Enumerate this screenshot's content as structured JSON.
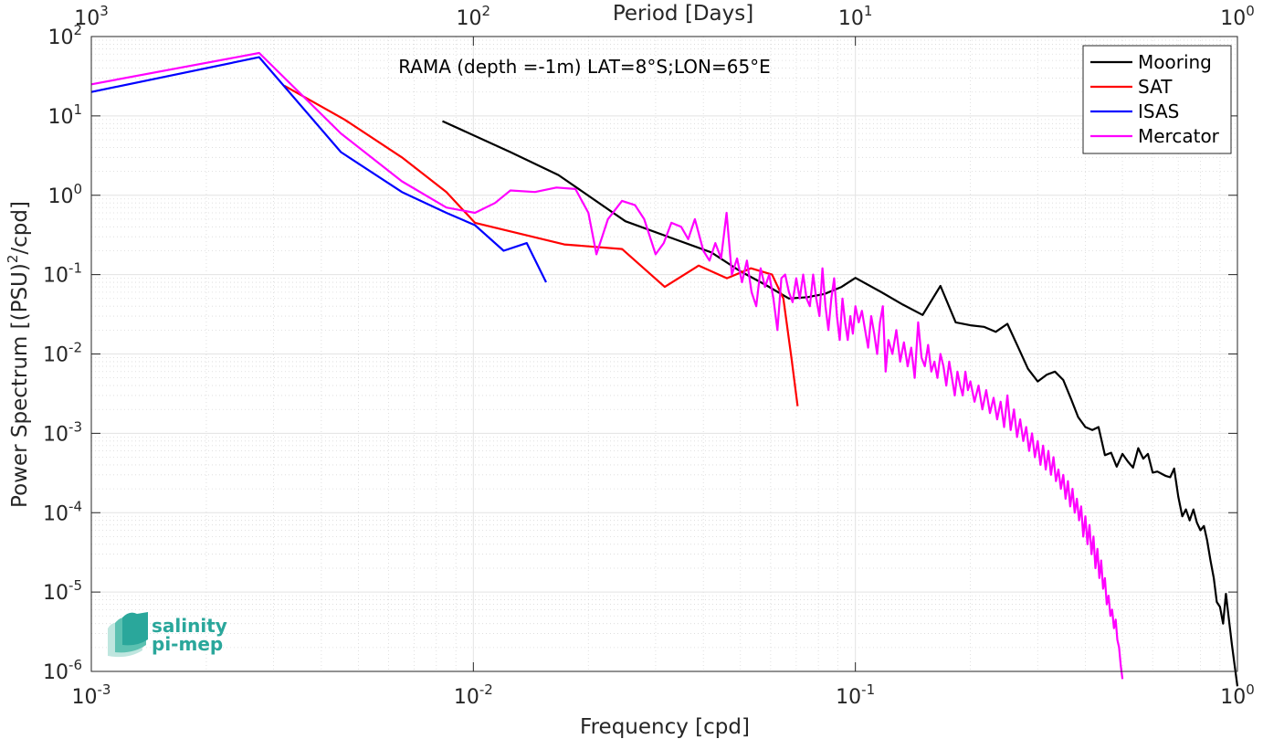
{
  "chart_data": {
    "type": "line",
    "title": "RAMA (depth =-1m) LAT=8°S;LON=65°E",
    "xlabel": "Frequency [cpd]",
    "ylabel_main": "Power Spectrum [(PSU)",
    "ylabel_sup": "2",
    "ylabel_tail": "/cpd]",
    "top_xlabel": "Period [Days]",
    "xscale": "log",
    "yscale": "log",
    "xlim": [
      0.001,
      1
    ],
    "ylim": [
      1e-06,
      100
    ],
    "grid": true,
    "legend_position": "top-right",
    "x_ticks": [
      {
        "base": "10",
        "exp": "-3"
      },
      {
        "base": "10",
        "exp": "-2"
      },
      {
        "base": "10",
        "exp": "-1"
      },
      {
        "base": "10",
        "exp": "0"
      }
    ],
    "top_ticks": [
      {
        "base": "10",
        "exp": "3"
      },
      {
        "base": "10",
        "exp": "2"
      },
      {
        "base": "10",
        "exp": "1"
      },
      {
        "base": "10",
        "exp": "0"
      }
    ],
    "y_ticks": [
      {
        "base": "10",
        "exp": "-6"
      },
      {
        "base": "10",
        "exp": "-5"
      },
      {
        "base": "10",
        "exp": "-4"
      },
      {
        "base": "10",
        "exp": "-3"
      },
      {
        "base": "10",
        "exp": "-2"
      },
      {
        "base": "10",
        "exp": "-1"
      },
      {
        "base": "10",
        "exp": "0"
      },
      {
        "base": "10",
        "exp": "1"
      },
      {
        "base": "10",
        "exp": "2"
      }
    ],
    "series": [
      {
        "name": "Mooring",
        "color": "#000000",
        "points": [
          [
            0.0083,
            8.6
          ],
          [
            0.0125,
            3.5
          ],
          [
            0.0167,
            1.8
          ],
          [
            0.025,
            0.47
          ],
          [
            0.033,
            0.29
          ],
          [
            0.042,
            0.19
          ],
          [
            0.05,
            0.11
          ],
          [
            0.058,
            0.075
          ],
          [
            0.067,
            0.05
          ],
          [
            0.075,
            0.052
          ],
          [
            0.083,
            0.057
          ],
          [
            0.092,
            0.07
          ],
          [
            0.1,
            0.091
          ],
          [
            0.117,
            0.06
          ],
          [
            0.133,
            0.042
          ],
          [
            0.15,
            0.031
          ],
          [
            0.167,
            0.072
          ],
          [
            0.183,
            0.025
          ],
          [
            0.2,
            0.023
          ],
          [
            0.217,
            0.022
          ],
          [
            0.233,
            0.019
          ],
          [
            0.25,
            0.024
          ],
          [
            0.267,
            0.012
          ],
          [
            0.283,
            0.0065
          ],
          [
            0.3,
            0.0045
          ],
          [
            0.317,
            0.0055
          ],
          [
            0.333,
            0.006
          ],
          [
            0.35,
            0.0047
          ],
          [
            0.367,
            0.0027
          ],
          [
            0.383,
            0.0016
          ],
          [
            0.4,
            0.0012
          ],
          [
            0.417,
            0.0011
          ],
          [
            0.433,
            0.0012
          ],
          [
            0.45,
            0.00053
          ],
          [
            0.467,
            0.00057
          ],
          [
            0.483,
            0.00038
          ],
          [
            0.5,
            0.00055
          ],
          [
            0.517,
            0.00044
          ],
          [
            0.533,
            0.00037
          ],
          [
            0.55,
            0.00065
          ],
          [
            0.567,
            0.00048
          ],
          [
            0.583,
            0.00055
          ],
          [
            0.6,
            0.00032
          ],
          [
            0.617,
            0.00033
          ],
          [
            0.633,
            0.00031
          ],
          [
            0.65,
            0.00029
          ],
          [
            0.667,
            0.00028
          ],
          [
            0.683,
            0.00036
          ],
          [
            0.7,
            0.00016
          ],
          [
            0.717,
            9e-05
          ],
          [
            0.733,
            0.00011
          ],
          [
            0.75,
            8e-05
          ],
          [
            0.767,
            0.00011
          ],
          [
            0.783,
            7.5e-05
          ],
          [
            0.8,
            6e-05
          ],
          [
            0.817,
            6.8e-05
          ],
          [
            0.833,
            4.5e-05
          ],
          [
            0.85,
            2.5e-05
          ],
          [
            0.867,
            1.5e-05
          ],
          [
            0.883,
            7.5e-06
          ],
          [
            0.9,
            6.5e-06
          ],
          [
            0.917,
            4e-06
          ],
          [
            0.933,
            9.5e-06
          ],
          [
            0.95,
            4.5e-06
          ],
          [
            0.967,
            2.2e-06
          ],
          [
            0.983,
            1.2e-06
          ],
          [
            1.0,
            6.5e-07
          ]
        ]
      },
      {
        "name": "SAT",
        "color": "#ff0000",
        "points": [
          [
            0.0032,
            24
          ],
          [
            0.0046,
            9
          ],
          [
            0.0065,
            3
          ],
          [
            0.0085,
            1.1
          ],
          [
            0.0101,
            0.45
          ],
          [
            0.0173,
            0.24
          ],
          [
            0.0245,
            0.21
          ],
          [
            0.0317,
            0.07
          ],
          [
            0.0389,
            0.13
          ],
          [
            0.0461,
            0.09
          ],
          [
            0.0533,
            0.12
          ],
          [
            0.0605,
            0.1
          ],
          [
            0.0648,
            0.05
          ],
          [
            0.068,
            0.009
          ],
          [
            0.0706,
            0.0022
          ]
        ]
      },
      {
        "name": "ISAS",
        "color": "#0000ff",
        "points": [
          [
            0.001,
            20
          ],
          [
            0.00275,
            55
          ],
          [
            0.0045,
            3.5
          ],
          [
            0.0065,
            1.1
          ],
          [
            0.0085,
            0.6
          ],
          [
            0.0101,
            0.42
          ],
          [
            0.012,
            0.2
          ],
          [
            0.0138,
            0.25
          ],
          [
            0.0155,
            0.08
          ]
        ]
      },
      {
        "name": "Mercator",
        "color": "#ff00ff",
        "points": [
          [
            0.001,
            25
          ],
          [
            0.00275,
            62
          ],
          [
            0.0045,
            6
          ],
          [
            0.0065,
            1.5
          ],
          [
            0.0085,
            0.7
          ],
          [
            0.0101,
            0.6
          ],
          [
            0.0114,
            0.8
          ],
          [
            0.0125,
            1.15
          ],
          [
            0.0145,
            1.1
          ],
          [
            0.0165,
            1.25
          ],
          [
            0.0185,
            1.2
          ],
          [
            0.02,
            0.6
          ],
          [
            0.021,
            0.18
          ],
          [
            0.0225,
            0.5
          ],
          [
            0.0245,
            0.85
          ],
          [
            0.0265,
            0.75
          ],
          [
            0.028,
            0.5
          ],
          [
            0.03,
            0.18
          ],
          [
            0.0315,
            0.25
          ],
          [
            0.033,
            0.45
          ],
          [
            0.035,
            0.4
          ],
          [
            0.0365,
            0.28
          ],
          [
            0.038,
            0.5
          ],
          [
            0.04,
            0.2
          ],
          [
            0.0415,
            0.15
          ],
          [
            0.043,
            0.25
          ],
          [
            0.0445,
            0.16
          ],
          [
            0.046,
            0.6
          ],
          [
            0.0475,
            0.1
          ],
          [
            0.049,
            0.16
          ],
          [
            0.0505,
            0.08
          ],
          [
            0.052,
            0.15
          ],
          [
            0.0535,
            0.06
          ],
          [
            0.055,
            0.04
          ],
          [
            0.0565,
            0.12
          ],
          [
            0.058,
            0.07
          ],
          [
            0.0595,
            0.1
          ],
          [
            0.061,
            0.05
          ],
          [
            0.0625,
            0.02
          ],
          [
            0.064,
            0.09
          ],
          [
            0.0655,
            0.1
          ],
          [
            0.067,
            0.06
          ],
          [
            0.0685,
            0.045
          ],
          [
            0.07,
            0.09
          ],
          [
            0.0715,
            0.05
          ],
          [
            0.073,
            0.1
          ],
          [
            0.0745,
            0.05
          ],
          [
            0.076,
            0.04
          ],
          [
            0.0775,
            0.1
          ],
          [
            0.079,
            0.05
          ],
          [
            0.0805,
            0.03
          ],
          [
            0.082,
            0.12
          ],
          [
            0.0835,
            0.04
          ],
          [
            0.085,
            0.02
          ],
          [
            0.0865,
            0.05
          ],
          [
            0.088,
            0.09
          ],
          [
            0.0895,
            0.03
          ],
          [
            0.091,
            0.015
          ],
          [
            0.0925,
            0.05
          ],
          [
            0.094,
            0.025
          ],
          [
            0.0955,
            0.015
          ],
          [
            0.097,
            0.03
          ],
          [
            0.0985,
            0.018
          ],
          [
            0.1,
            0.04
          ],
          [
            0.102,
            0.025
          ],
          [
            0.104,
            0.035
          ],
          [
            0.106,
            0.02
          ],
          [
            0.108,
            0.012
          ],
          [
            0.11,
            0.03
          ],
          [
            0.112,
            0.018
          ],
          [
            0.114,
            0.01
          ],
          [
            0.116,
            0.025
          ],
          [
            0.118,
            0.04
          ],
          [
            0.12,
            0.006
          ],
          [
            0.122,
            0.015
          ],
          [
            0.125,
            0.01
          ],
          [
            0.128,
            0.02
          ],
          [
            0.131,
            0.008
          ],
          [
            0.134,
            0.014
          ],
          [
            0.137,
            0.007
          ],
          [
            0.14,
            0.012
          ],
          [
            0.143,
            0.005
          ],
          [
            0.146,
            0.025
          ],
          [
            0.149,
            0.009
          ],
          [
            0.152,
            0.007
          ],
          [
            0.155,
            0.013
          ],
          [
            0.158,
            0.006
          ],
          [
            0.161,
            0.008
          ],
          [
            0.164,
            0.005
          ],
          [
            0.167,
            0.01
          ],
          [
            0.17,
            0.007
          ],
          [
            0.173,
            0.004
          ],
          [
            0.176,
            0.008
          ],
          [
            0.179,
            0.005
          ],
          [
            0.182,
            0.003
          ],
          [
            0.185,
            0.006
          ],
          [
            0.188,
            0.004
          ],
          [
            0.191,
            0.003
          ],
          [
            0.194,
            0.006
          ],
          [
            0.197,
            0.0035
          ],
          [
            0.2,
            0.0045
          ],
          [
            0.205,
            0.0025
          ],
          [
            0.21,
            0.004
          ],
          [
            0.215,
            0.002
          ],
          [
            0.22,
            0.0035
          ],
          [
            0.225,
            0.0018
          ],
          [
            0.23,
            0.0028
          ],
          [
            0.235,
            0.0015
          ],
          [
            0.24,
            0.0025
          ],
          [
            0.245,
            0.0012
          ],
          [
            0.25,
            0.003
          ],
          [
            0.255,
            0.0011
          ],
          [
            0.26,
            0.002
          ],
          [
            0.265,
            0.0009
          ],
          [
            0.27,
            0.0015
          ],
          [
            0.275,
            0.0008
          ],
          [
            0.28,
            0.0012
          ],
          [
            0.285,
            0.0006
          ],
          [
            0.29,
            0.001
          ],
          [
            0.295,
            0.0005
          ],
          [
            0.3,
            0.0008
          ],
          [
            0.305,
            0.0004
          ],
          [
            0.31,
            0.0007
          ],
          [
            0.315,
            0.00035
          ],
          [
            0.32,
            0.0006
          ],
          [
            0.325,
            0.0003
          ],
          [
            0.33,
            0.0005
          ],
          [
            0.335,
            0.00025
          ],
          [
            0.34,
            0.00035
          ],
          [
            0.345,
            0.0002
          ],
          [
            0.35,
            0.0003
          ],
          [
            0.355,
            0.00015
          ],
          [
            0.36,
            0.00025
          ],
          [
            0.365,
            0.00012
          ],
          [
            0.37,
            0.0002
          ],
          [
            0.375,
            0.0001
          ],
          [
            0.38,
            0.00015
          ],
          [
            0.385,
            8e-05
          ],
          [
            0.39,
            0.00012
          ],
          [
            0.395,
            5e-05
          ],
          [
            0.4,
            9e-05
          ],
          [
            0.405,
            4e-05
          ],
          [
            0.41,
            7e-05
          ],
          [
            0.415,
            3e-05
          ],
          [
            0.42,
            5e-05
          ],
          [
            0.425,
            2e-05
          ],
          [
            0.43,
            3.5e-05
          ],
          [
            0.435,
            1.5e-05
          ],
          [
            0.44,
            2.5e-05
          ],
          [
            0.445,
            1.1e-05
          ],
          [
            0.45,
            1.5e-05
          ],
          [
            0.455,
            7e-06
          ],
          [
            0.46,
            9e-06
          ],
          [
            0.465,
            5e-06
          ],
          [
            0.47,
            6e-06
          ],
          [
            0.475,
            3.5e-06
          ],
          [
            0.48,
            4.5e-06
          ],
          [
            0.485,
            2.5e-06
          ],
          [
            0.49,
            2e-06
          ],
          [
            0.495,
            1.2e-06
          ],
          [
            0.5,
            8e-07
          ]
        ]
      }
    ],
    "logo": {
      "line1": "salinity",
      "line2": "pi-mep",
      "color": "#2aa79b"
    }
  }
}
